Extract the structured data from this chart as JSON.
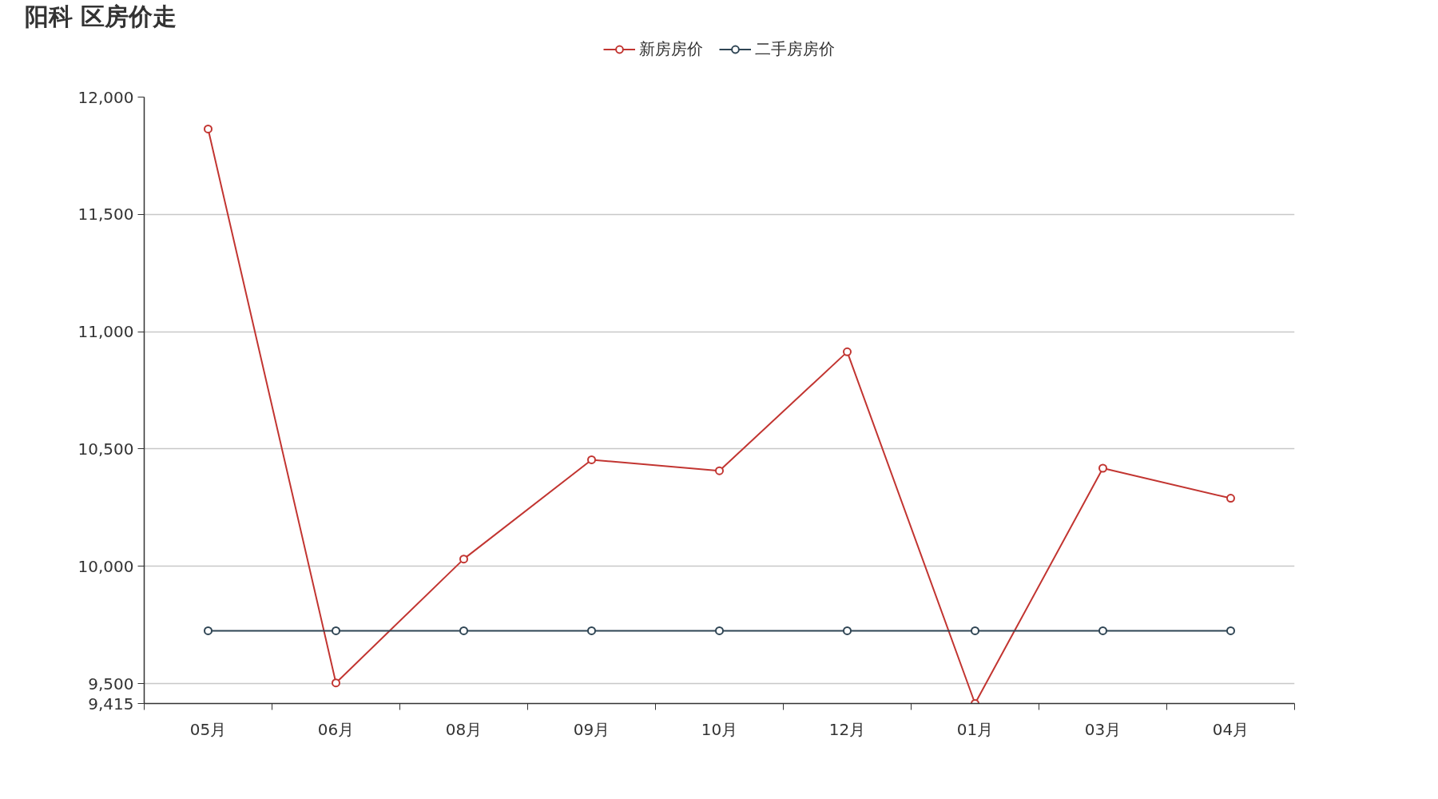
{
  "chart_data": {
    "type": "line",
    "title": "阳科   区房价走",
    "categories": [
      "05月",
      "06月",
      "08月",
      "09月",
      "10月",
      "12月",
      "01月",
      "03月",
      "04月"
    ],
    "series": [
      {
        "name": "新房房价",
        "color": "#c23531",
        "values": [
          11864,
          9503,
          10031,
          10454,
          10407,
          10914,
          9415,
          10418,
          10290
        ]
      },
      {
        "name": "二手房房价",
        "color": "#2f4554",
        "values": [
          9725,
          9725,
          9725,
          9725,
          9725,
          9725,
          9725,
          9725,
          9725
        ]
      }
    ],
    "ylim": [
      9415,
      12000
    ],
    "yticks": [
      {
        "value": 9415,
        "label": "9,415"
      },
      {
        "value": 9500,
        "label": "9,500"
      },
      {
        "value": 10000,
        "label": "10,000"
      },
      {
        "value": 10500,
        "label": "10,500"
      },
      {
        "value": 11000,
        "label": "11,000"
      },
      {
        "value": 11500,
        "label": "11,500"
      },
      {
        "value": 12000,
        "label": "12,000"
      }
    ],
    "grid": "y",
    "legend": "top",
    "marker": "circle",
    "line_style": "solid"
  }
}
